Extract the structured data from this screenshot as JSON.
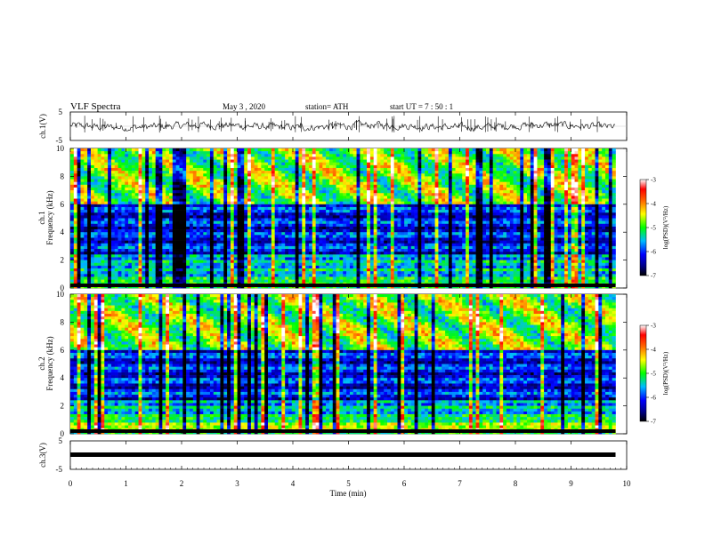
{
  "header": {
    "title": "VLF  Spectra",
    "date": "May 3  , 2020",
    "station": "station= ATH",
    "start": "start  UT  =    7  : 50 : 1"
  },
  "chart_data": [
    {
      "type": "line",
      "panel": "ch1-waveform",
      "ylabel": "ch.1(V)",
      "yticks": [
        "5",
        "-5"
      ],
      "ylim": [
        -5,
        5
      ],
      "xlim": [
        0,
        10
      ],
      "baseline_v": 0.0,
      "visible_range_v": [
        -3,
        3
      ],
      "end_time_min": 9.8
    },
    {
      "type": "heatmap",
      "panel": "ch1-spectrogram",
      "ylabel": "ch.1\nFrequency (kHz)",
      "ylabel_top": "ch.1",
      "ylabel_bottom": "Frequency (kHz)",
      "yticks": [
        "0",
        "2",
        "4",
        "6",
        "8",
        "10"
      ],
      "ylim": [
        0,
        10
      ],
      "xlim": [
        0,
        10
      ],
      "end_time_min": 9.8,
      "colorbar": {
        "label": "log(PSD)(V²/Hz)",
        "ticks": [
          "-3",
          "-4",
          "-5",
          "-6",
          "-7"
        ],
        "range": [
          -7,
          -3
        ]
      }
    },
    {
      "type": "heatmap",
      "panel": "ch2-spectrogram",
      "ylabel": "ch.2\nFrequency (kHz)",
      "ylabel_top": "ch.2",
      "ylabel_bottom": "Frequency (kHz)",
      "yticks": [
        "0",
        "2",
        "4",
        "6",
        "8",
        "10"
      ],
      "ylim": [
        0,
        10
      ],
      "xlim": [
        0,
        10
      ],
      "end_time_min": 9.8,
      "colorbar": {
        "label": "log(PSD)(V²/Hz)",
        "ticks": [
          "-3",
          "-4",
          "-5",
          "-6",
          "-7"
        ],
        "range": [
          -7,
          -3
        ]
      }
    },
    {
      "type": "line",
      "panel": "ch3-waveform",
      "ylabel": "ch.3(V)",
      "yticks": [
        "5",
        "-5"
      ],
      "ylim": [
        -5,
        5
      ],
      "xlim": [
        0,
        10
      ],
      "baseline_v": 0.0,
      "end_time_min": 9.8,
      "xlabel": "Time  (min)",
      "xticks": [
        "0",
        "1",
        "2",
        "3",
        "4",
        "5",
        "6",
        "7",
        "8",
        "9",
        "10"
      ]
    }
  ]
}
